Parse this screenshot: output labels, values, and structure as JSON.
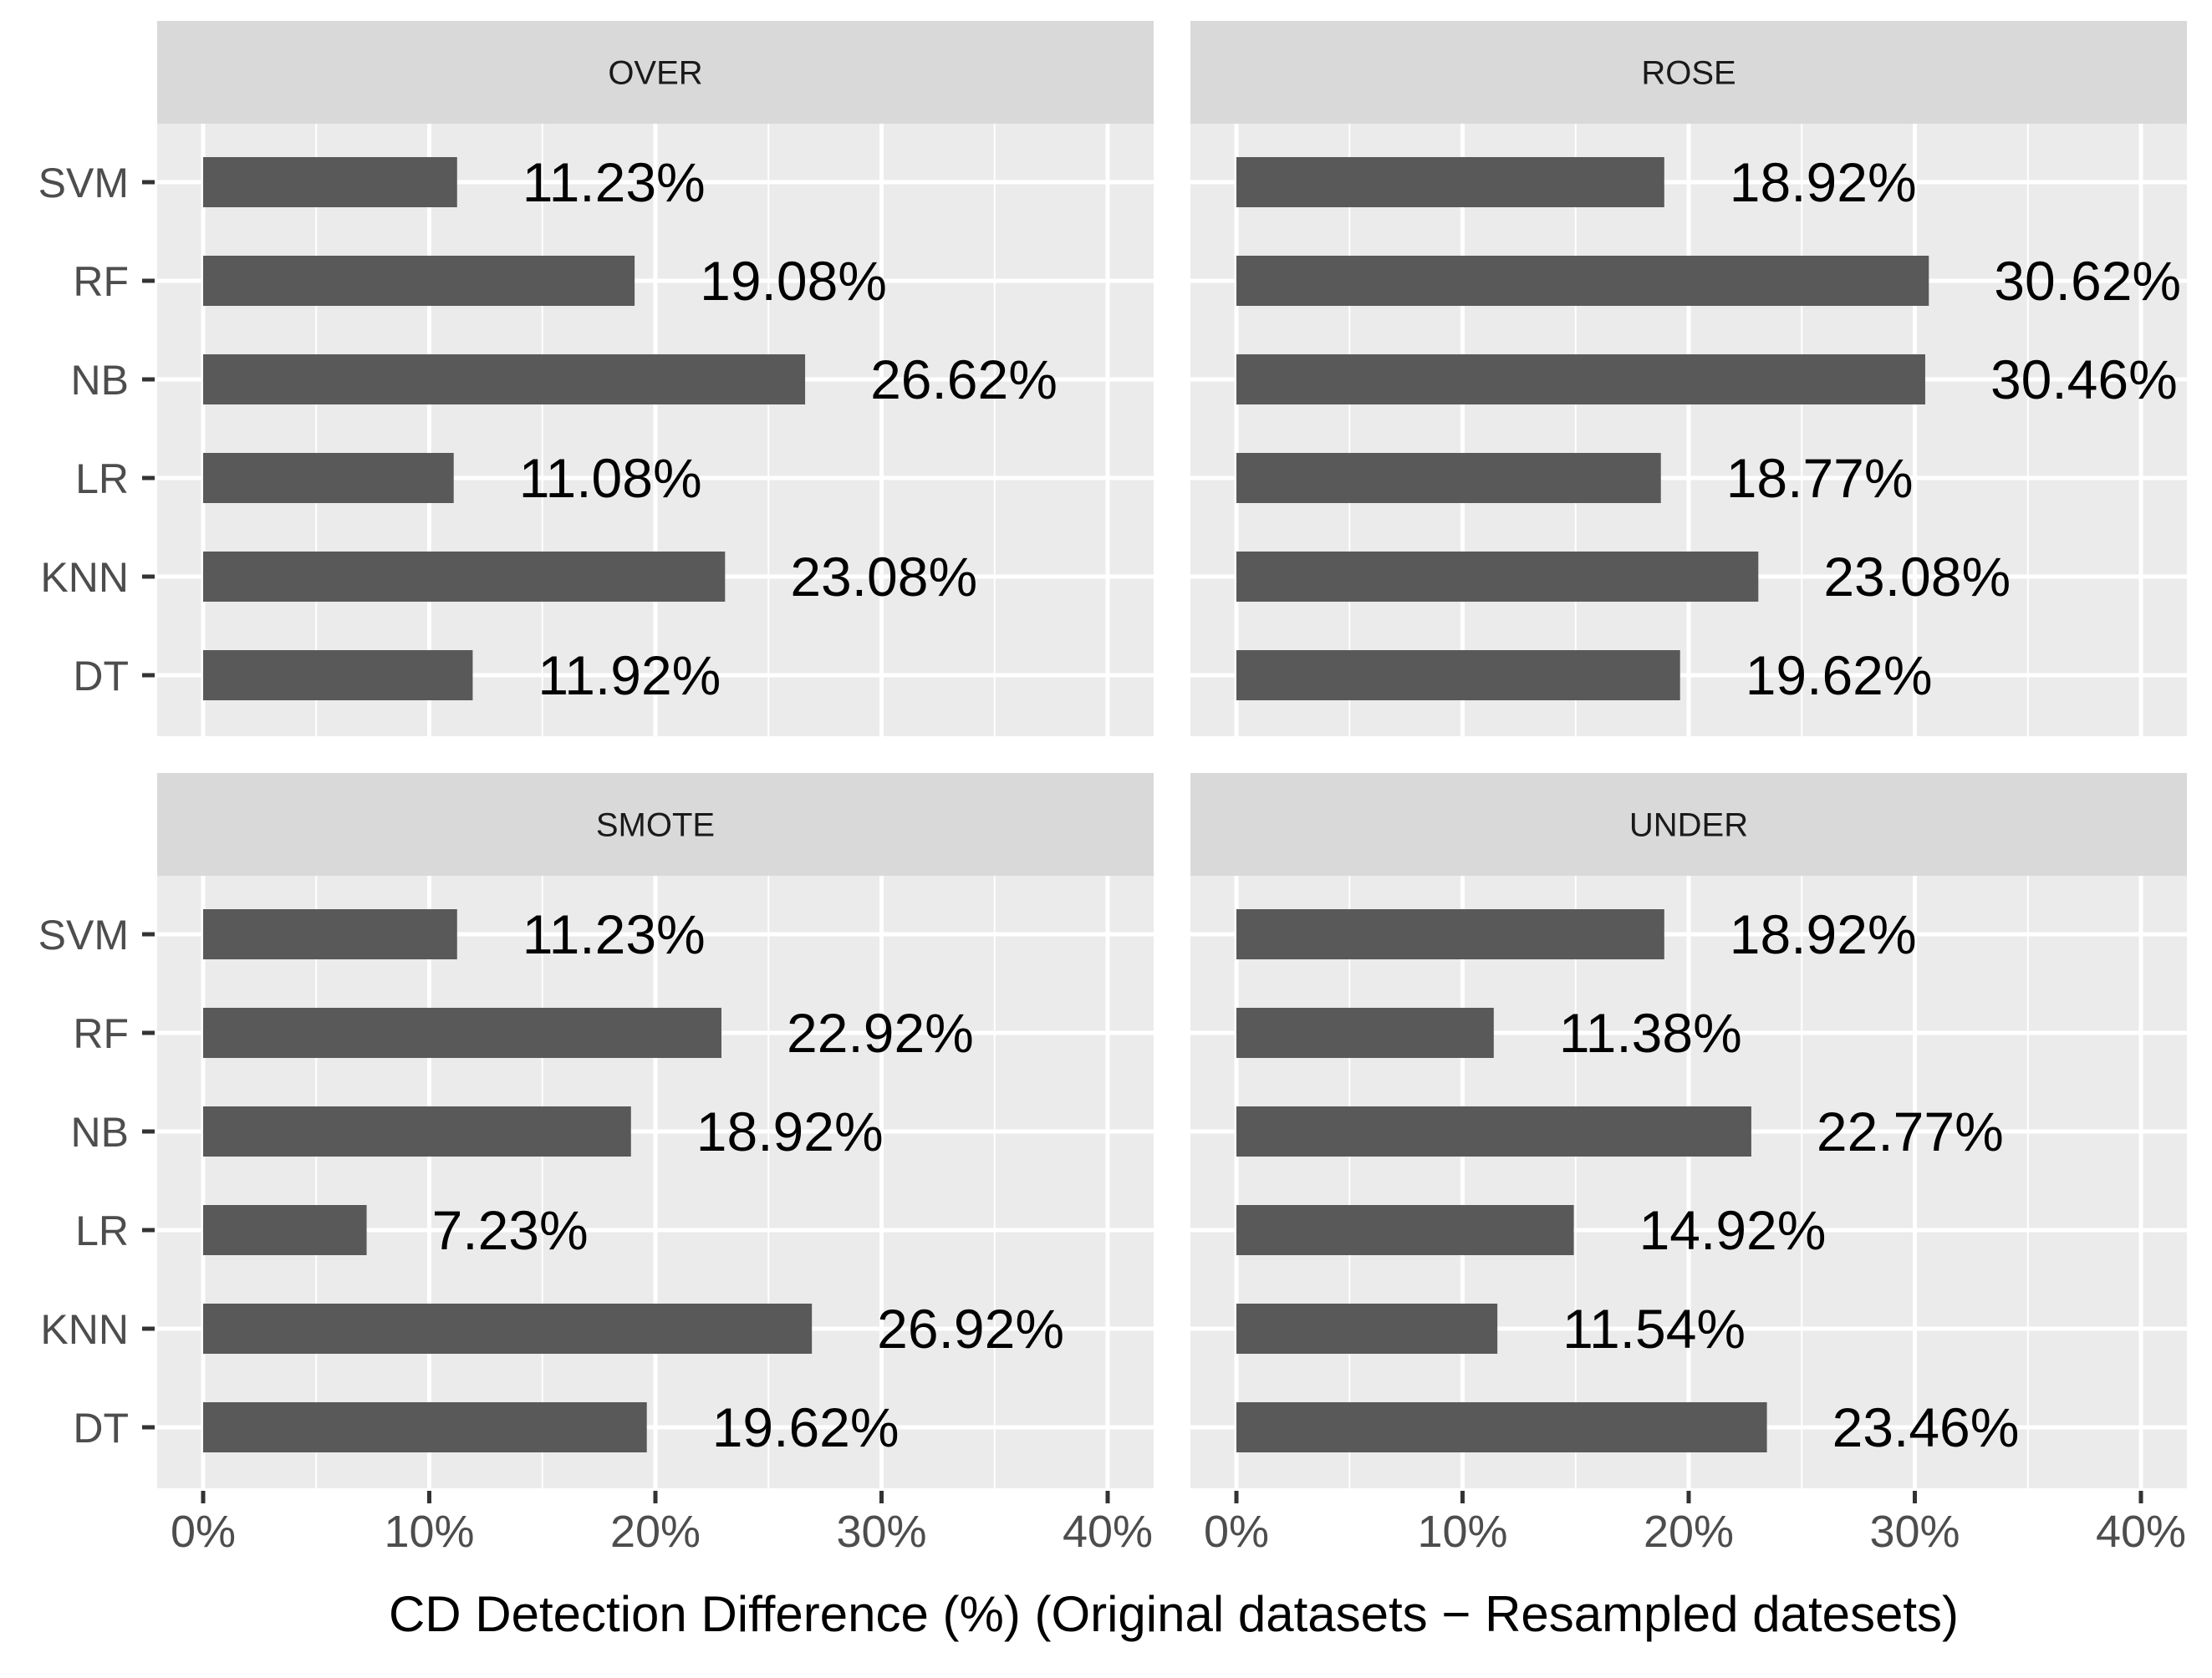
{
  "chart_data": {
    "type": "bar",
    "orientation": "horizontal",
    "facet_layout": "2x2",
    "xlabel": "CD Detection Difference (%) (Original datasets − Resampled datesets)",
    "ylabel": "",
    "xlim": [
      0,
      40
    ],
    "xticks": [
      "0%",
      "10%",
      "20%",
      "30%",
      "40%"
    ],
    "grid": true,
    "categories": [
      "SVM",
      "RF",
      "NB",
      "LR",
      "KNN",
      "DT"
    ],
    "colors": {
      "bar": "#595959",
      "panel": "#ebebeb",
      "strip": "#d9d9d9",
      "grid": "#ffffff"
    },
    "panels": [
      {
        "title": "OVER",
        "values": [
          11.23,
          19.08,
          26.62,
          11.08,
          23.08,
          11.92
        ],
        "labels": [
          "11.23%",
          "19.08%",
          "26.62%",
          "11.08%",
          "23.08%",
          "11.92%"
        ]
      },
      {
        "title": "ROSE",
        "values": [
          18.92,
          30.62,
          30.46,
          18.77,
          23.08,
          19.62
        ],
        "labels": [
          "18.92%",
          "30.62%",
          "30.46%",
          "18.77%",
          "23.08%",
          "19.62%"
        ]
      },
      {
        "title": "SMOTE",
        "values": [
          11.23,
          22.92,
          18.92,
          7.23,
          26.92,
          19.62
        ],
        "labels": [
          "11.23%",
          "22.92%",
          "18.92%",
          "7.23%",
          "26.92%",
          "19.62%"
        ]
      },
      {
        "title": "UNDER",
        "values": [
          18.92,
          11.38,
          22.77,
          14.92,
          11.54,
          23.46
        ],
        "labels": [
          "18.92%",
          "11.38%",
          "22.77%",
          "14.92%",
          "11.54%",
          "23.46%"
        ]
      }
    ]
  }
}
